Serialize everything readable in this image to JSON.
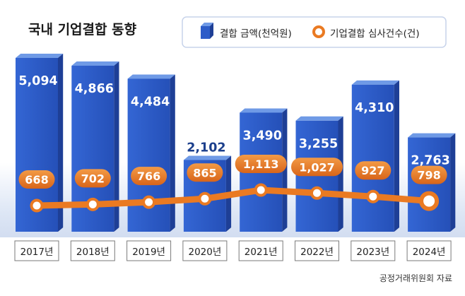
{
  "chart_data": {
    "type": "bar",
    "title": "국내 기업결합 동향",
    "categories": [
      "2017년",
      "2018년",
      "2019년",
      "2020년",
      "2021년",
      "2022년",
      "2023년",
      "2024년"
    ],
    "series": [
      {
        "name": "결합 금액(천억원)",
        "type": "bar",
        "values": [
          5094,
          4866,
          4484,
          2102,
          3490,
          3255,
          4310,
          2763
        ],
        "labels": [
          "5,094",
          "4,866",
          "4,484",
          "2,102",
          "3,490",
          "3,255",
          "4,310",
          "2,763"
        ]
      },
      {
        "name": "기업결합 심사건수(건)",
        "type": "line",
        "values": [
          668,
          702,
          766,
          865,
          1113,
          1027,
          927,
          798
        ],
        "labels": [
          "668",
          "702",
          "766",
          "865",
          "1,113",
          "1,027",
          "927",
          "798"
        ]
      }
    ],
    "source": "공정거래위원회 자료",
    "legend_position": "top-right",
    "grid": false
  },
  "colors": {
    "bar_front": "#2d5cc8",
    "bar_top": "#6f9ae6",
    "bar_side": "#1e3f96",
    "line": "#ea7a22",
    "title": "#1a1a1a",
    "label_inside": "#ffffff",
    "label_outside": "#1c3f8c"
  }
}
